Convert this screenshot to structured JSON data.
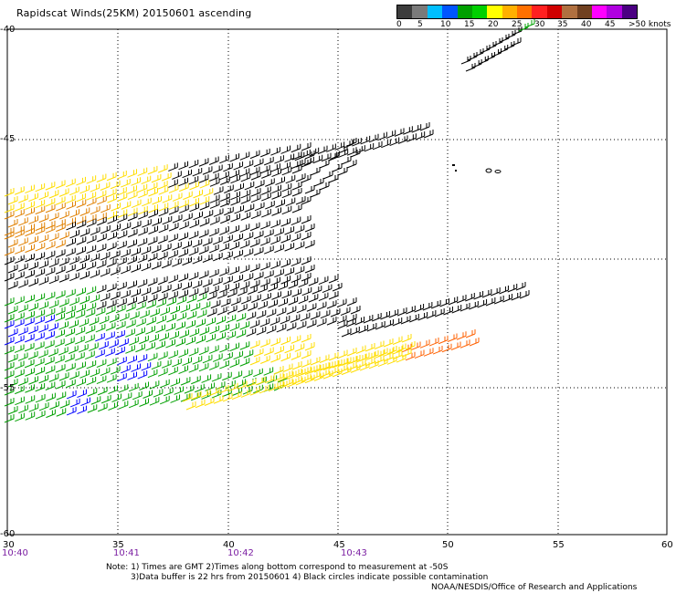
{
  "title": "Rapidscat Winds(25KM) 20150601 ascending",
  "colorbar": {
    "labels": [
      "0",
      "5",
      "10",
      "15",
      "20",
      "25",
      "30",
      "35",
      "40",
      "45",
      ">50 knots"
    ],
    "colors": [
      "#3c3c3c",
      "#7a7a7a",
      "#00bfff",
      "#0055ff",
      "#00a000",
      "#00d000",
      "#ffff00",
      "#ffb000",
      "#ff7000",
      "#ff2020",
      "#d00000",
      "#b07040",
      "#704020",
      "#ff00ff",
      "#b000e0",
      "#4b0082"
    ]
  },
  "axes": {
    "x_ticks": [
      "30",
      "35",
      "40",
      "45",
      "50",
      "55",
      "60"
    ],
    "y_ticks": [
      "-40",
      "-45",
      "-50",
      "-55",
      "-60"
    ],
    "time_labels": [
      "10:40",
      "10:41",
      "10:42",
      "10:43"
    ]
  },
  "barb_colors": {
    "calm": "#000000",
    "light": "#0000ff",
    "moderate": "#00a000",
    "fresh": "#ffdd00",
    "strong": "#e08000",
    "gale": "#ff6000"
  },
  "notes": {
    "line1": "Note: 1) Times are GMT 2)Times along bottom correspond to measurement at -50S",
    "line2": "3)Data buffer is 22 hrs from 20150601 4) Black circles indicate possible contamination",
    "line3": "NOAA/NESDIS/Office of Research and Applications"
  }
}
